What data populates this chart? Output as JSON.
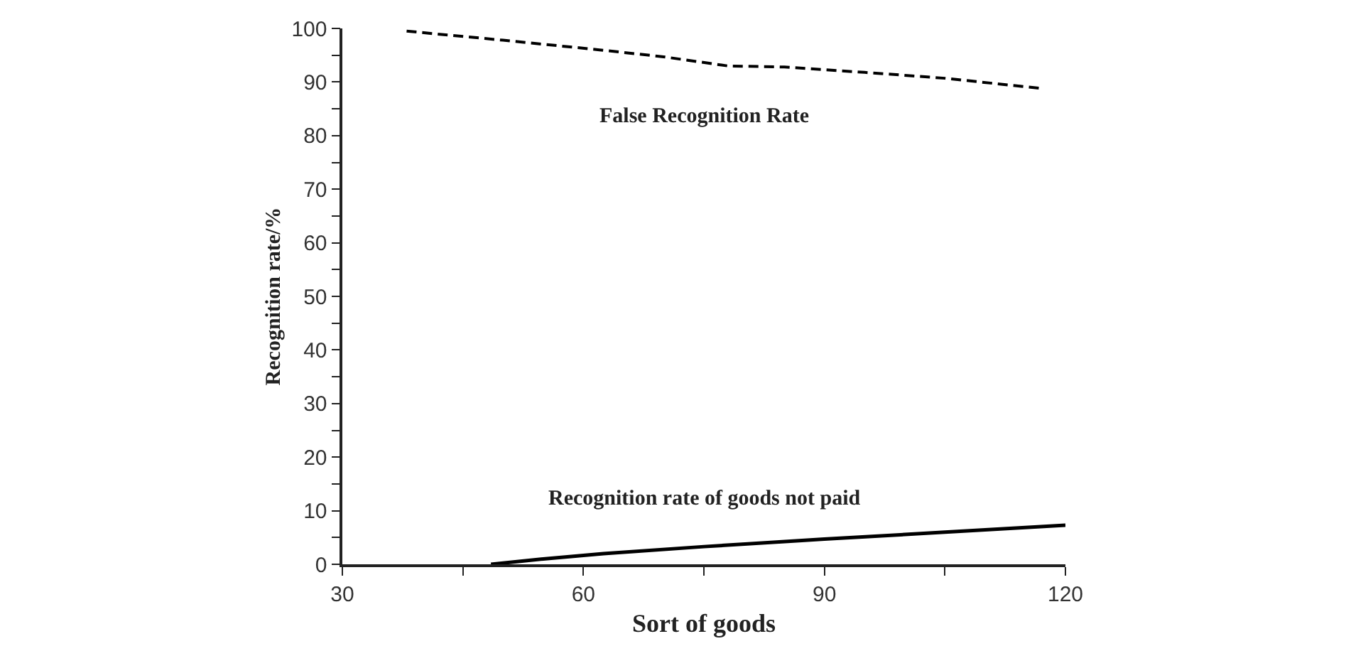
{
  "chart_data": {
    "type": "line",
    "xlabel": "Sort of goods",
    "ylabel": "Recognition rate/%",
    "series": [
      {
        "name": "False Recognition Rate",
        "color": "#000000",
        "line_style": "dashed",
        "x": [
          38,
          50,
          62,
          70,
          78,
          85,
          95,
          105,
          117
        ],
        "values": [
          99.5,
          97.8,
          96,
          94.7,
          93,
          92.8,
          91.8,
          90.7,
          88.8
        ]
      },
      {
        "name": "Recognition rate of goods not paid",
        "color": "#000000",
        "line_style": "solid",
        "x": [
          48.5,
          55,
          62.5,
          75,
          90,
          105,
          120
        ],
        "values": [
          0,
          1,
          2,
          3.3,
          4.7,
          6,
          7.3
        ]
      }
    ],
    "xlim": [
      30,
      120
    ],
    "xticks": [
      30,
      {
        "value": 45,
        "label": null
      },
      60,
      {
        "value": 75,
        "label": null
      },
      90,
      {
        "value": 105,
        "label": null
      },
      120
    ],
    "ylim": [
      0,
      100
    ],
    "yticks": [
      0,
      {
        "value": 5,
        "label": null
      },
      10,
      {
        "value": 15,
        "label": null
      },
      20,
      {
        "value": 25,
        "label": null
      },
      30,
      {
        "value": 35,
        "label": null
      },
      40,
      {
        "value": 45,
        "label": null
      },
      50,
      {
        "value": 55,
        "label": null
      },
      60,
      {
        "value": 65,
        "label": null
      },
      70,
      {
        "value": 75,
        "label": null
      },
      80,
      {
        "value": 85,
        "label": null
      },
      90,
      {
        "value": 95,
        "label": null
      },
      100
    ]
  }
}
